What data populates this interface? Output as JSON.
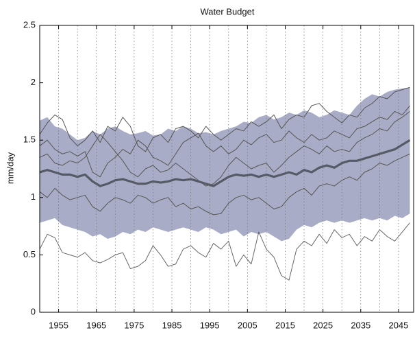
{
  "chart_data": {
    "type": "line",
    "title": "Water Budget",
    "ylabel": "mm/day",
    "x": [
      1950,
      1952,
      1954,
      1956,
      1958,
      1960,
      1962,
      1964,
      1966,
      1968,
      1970,
      1972,
      1974,
      1976,
      1978,
      1980,
      1982,
      1984,
      1986,
      1988,
      1990,
      1992,
      1994,
      1996,
      1998,
      2000,
      2002,
      2004,
      2006,
      2008,
      2010,
      2012,
      2014,
      2016,
      2018,
      2020,
      2022,
      2024,
      2026,
      2028,
      2030,
      2032,
      2034,
      2036,
      2038,
      2040,
      2042,
      2044,
      2046,
      2048
    ],
    "xlim": [
      1950,
      2049
    ],
    "xticks": [
      1955,
      1965,
      1975,
      1985,
      1995,
      2005,
      2015,
      2025,
      2035,
      2045
    ],
    "xgrid": [
      1950,
      1955,
      1960,
      1965,
      1970,
      1975,
      1980,
      1985,
      1990,
      1995,
      2000,
      2005,
      2010,
      2015,
      2020,
      2025,
      2030,
      2035,
      2040,
      2045
    ],
    "ylim": [
      0,
      2.5
    ],
    "yticks": [
      0,
      0.5,
      1,
      1.5,
      2,
      2.5
    ],
    "band": {
      "color": "#a9acc6",
      "upper": [
        1.67,
        1.7,
        1.62,
        1.6,
        1.55,
        1.5,
        1.52,
        1.58,
        1.55,
        1.6,
        1.62,
        1.58,
        1.55,
        1.56,
        1.58,
        1.54,
        1.55,
        1.6,
        1.58,
        1.62,
        1.6,
        1.56,
        1.57,
        1.55,
        1.58,
        1.6,
        1.62,
        1.66,
        1.65,
        1.7,
        1.72,
        1.68,
        1.7,
        1.74,
        1.72,
        1.76,
        1.74,
        1.7,
        1.72,
        1.76,
        1.74,
        1.72,
        1.8,
        1.86,
        1.9,
        1.88,
        1.92,
        1.94,
        1.95,
        1.96
      ],
      "lower": [
        0.78,
        0.8,
        0.82,
        0.76,
        0.74,
        0.72,
        0.7,
        0.66,
        0.68,
        0.64,
        0.66,
        0.7,
        0.68,
        0.72,
        0.7,
        0.74,
        0.72,
        0.7,
        0.72,
        0.74,
        0.72,
        0.7,
        0.74,
        0.72,
        0.68,
        0.7,
        0.72,
        0.66,
        0.7,
        0.68,
        0.7,
        0.66,
        0.62,
        0.64,
        0.72,
        0.76,
        0.74,
        0.78,
        0.8,
        0.78,
        0.8,
        0.78,
        0.8,
        0.82,
        0.8,
        0.82,
        0.8,
        0.84,
        0.82,
        0.86
      ]
    },
    "series": [
      {
        "color": "#555a66",
        "width": 3.2,
        "values": [
          1.22,
          1.24,
          1.22,
          1.2,
          1.2,
          1.18,
          1.2,
          1.14,
          1.1,
          1.12,
          1.15,
          1.16,
          1.14,
          1.12,
          1.12,
          1.14,
          1.13,
          1.14,
          1.16,
          1.15,
          1.16,
          1.14,
          1.12,
          1.1,
          1.14,
          1.18,
          1.2,
          1.19,
          1.2,
          1.18,
          1.2,
          1.18,
          1.2,
          1.22,
          1.2,
          1.24,
          1.22,
          1.26,
          1.28,
          1.26,
          1.3,
          1.32,
          1.32,
          1.34,
          1.36,
          1.38,
          1.4,
          1.42,
          1.46,
          1.5
        ]
      },
      {
        "color": "#555555",
        "width": 1,
        "values": [
          1.55,
          1.65,
          1.72,
          1.68,
          1.52,
          1.45,
          1.5,
          1.58,
          1.48,
          1.62,
          1.58,
          1.7,
          1.62,
          1.45,
          1.4,
          1.52,
          1.55,
          1.48,
          1.6,
          1.62,
          1.58,
          1.52,
          1.62,
          1.55,
          1.5,
          1.55,
          1.6,
          1.58,
          1.66,
          1.62,
          1.66,
          1.72,
          1.6,
          1.68,
          1.72,
          1.7,
          1.8,
          1.82,
          1.75,
          1.7,
          1.65,
          1.72,
          1.7,
          1.78,
          1.82,
          1.88,
          1.86,
          1.92,
          1.94,
          1.96
        ]
      },
      {
        "color": "#555555",
        "width": 1,
        "values": [
          1.45,
          1.5,
          1.42,
          1.38,
          1.4,
          1.36,
          1.4,
          1.22,
          1.18,
          1.3,
          1.35,
          1.42,
          1.38,
          1.5,
          1.45,
          1.35,
          1.32,
          1.28,
          1.38,
          1.48,
          1.52,
          1.56,
          1.45,
          1.4,
          1.45,
          1.38,
          1.42,
          1.5,
          1.46,
          1.52,
          1.55,
          1.48,
          1.5,
          1.58,
          1.52,
          1.48,
          1.55,
          1.5,
          1.52,
          1.58,
          1.55,
          1.52,
          1.6,
          1.62,
          1.66,
          1.7,
          1.68,
          1.75,
          1.72,
          1.8
        ]
      },
      {
        "color": "#555555",
        "width": 1,
        "values": [
          1.35,
          1.38,
          1.3,
          1.28,
          1.32,
          1.3,
          1.35,
          1.45,
          1.55,
          1.48,
          1.4,
          1.32,
          1.22,
          1.18,
          1.25,
          1.28,
          1.22,
          1.24,
          1.3,
          1.25,
          1.2,
          1.15,
          1.1,
          1.12,
          1.18,
          1.28,
          1.35,
          1.3,
          1.25,
          1.28,
          1.3,
          1.22,
          1.28,
          1.35,
          1.4,
          1.45,
          1.42,
          1.38,
          1.45,
          1.4,
          1.42,
          1.4,
          1.48,
          1.52,
          1.55,
          1.6,
          1.58,
          1.66,
          1.7,
          1.75
        ]
      },
      {
        "color": "#555555",
        "width": 1,
        "values": [
          1.05,
          1.0,
          1.08,
          1.02,
          0.98,
          1.0,
          1.02,
          0.92,
          0.88,
          0.95,
          1.0,
          0.98,
          0.95,
          1.02,
          1.0,
          0.95,
          0.98,
          1.0,
          0.92,
          0.95,
          0.9,
          0.92,
          0.88,
          0.85,
          0.86,
          0.95,
          1.0,
          1.02,
          0.98,
          1.0,
          0.95,
          0.9,
          0.92,
          1.0,
          1.05,
          1.08,
          1.02,
          1.1,
          1.12,
          1.1,
          1.15,
          1.18,
          1.15,
          1.22,
          1.25,
          1.3,
          1.28,
          1.32,
          1.35,
          1.38
        ]
      },
      {
        "color": "#666666",
        "width": 1,
        "values": [
          0.55,
          0.68,
          0.65,
          0.52,
          0.5,
          0.48,
          0.52,
          0.45,
          0.43,
          0.46,
          0.5,
          0.52,
          0.38,
          0.4,
          0.45,
          0.58,
          0.5,
          0.4,
          0.42,
          0.55,
          0.58,
          0.52,
          0.48,
          0.6,
          0.55,
          0.62,
          0.4,
          0.5,
          0.42,
          0.7,
          0.55,
          0.48,
          0.32,
          0.28,
          0.55,
          0.62,
          0.58,
          0.68,
          0.6,
          0.72,
          0.65,
          0.68,
          0.58,
          0.66,
          0.62,
          0.72,
          0.66,
          0.62,
          0.7,
          0.78
        ]
      }
    ]
  }
}
